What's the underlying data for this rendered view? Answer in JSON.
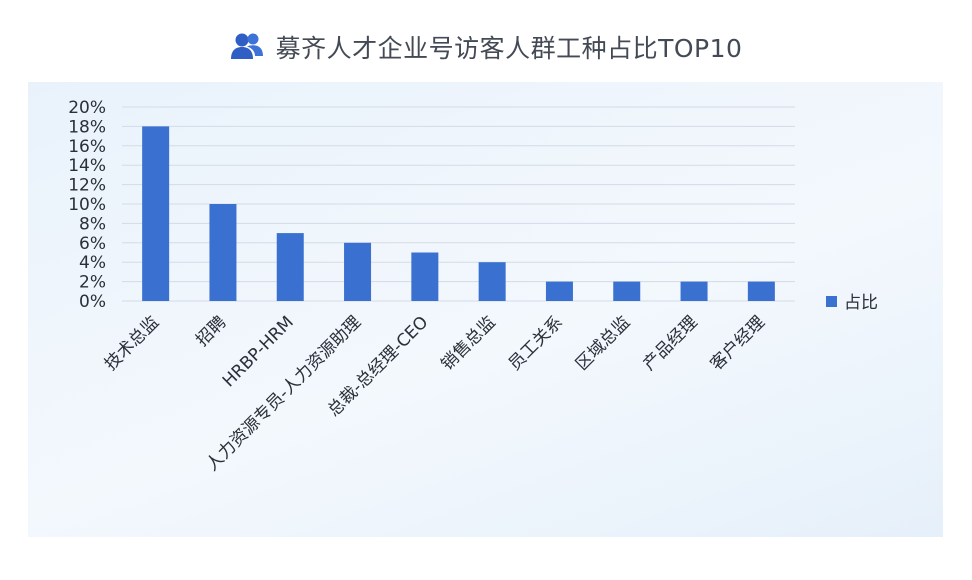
{
  "header": {
    "title": "募齐人才企业号访客人群工种占比TOP10",
    "icon": "users-icon"
  },
  "chart_data": {
    "type": "bar",
    "title": "募齐人才企业号访客人群工种占比TOP10",
    "categories": [
      "技术总监",
      "招聘",
      "HRBP-HRM",
      "人力资源专员-人力资源助理",
      "总裁-总经理-CEO",
      "销售总监",
      "员工关系",
      "区域总监",
      "产品经理",
      "客户经理"
    ],
    "series": [
      {
        "name": "占比",
        "values": [
          18,
          10,
          7,
          6,
          5,
          4,
          2,
          2,
          2,
          2
        ],
        "color": "#3a70d0"
      }
    ],
    "yticks": [
      "0%",
      "2%",
      "4%",
      "6%",
      "8%",
      "10%",
      "12%",
      "14%",
      "16%",
      "18%",
      "20%"
    ],
    "ylim": [
      0,
      20
    ],
    "y_unit": "%",
    "grid": true,
    "legend": "right",
    "xlabel": "",
    "ylabel": ""
  }
}
